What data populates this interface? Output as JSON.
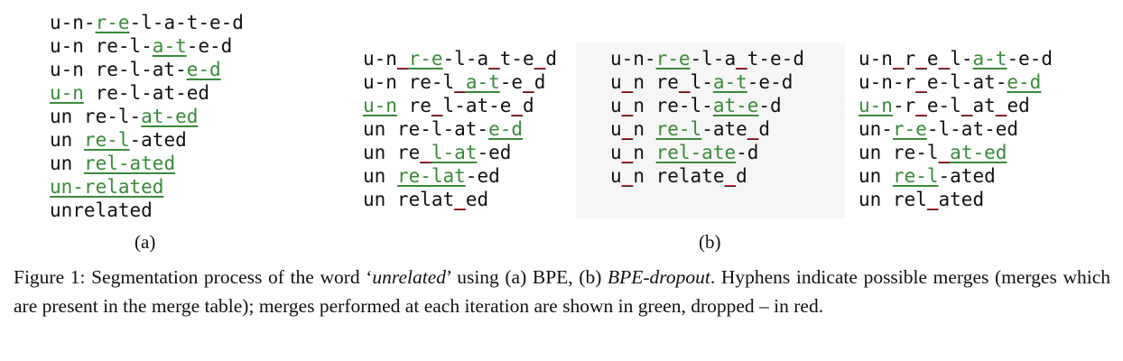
{
  "panel_a": {
    "label": "(a)",
    "lines": [
      [
        [
          "u-n-",
          ""
        ],
        [
          "r-e",
          "g"
        ],
        [
          "-l-a-t-e-d",
          ""
        ]
      ],
      [
        [
          "u-n re-l-",
          ""
        ],
        [
          "a-t",
          "g"
        ],
        [
          "-e-d",
          ""
        ]
      ],
      [
        [
          "u-n re-l-at-",
          ""
        ],
        [
          "e-d",
          "g"
        ]
      ],
      [
        [
          "u-n",
          "g"
        ],
        [
          " re-l-at-ed",
          ""
        ]
      ],
      [
        [
          "un re-l-",
          ""
        ],
        [
          "at-ed",
          "g"
        ]
      ],
      [
        [
          "un ",
          ""
        ],
        [
          "re-l",
          "g"
        ],
        [
          "-ated",
          ""
        ]
      ],
      [
        [
          "un ",
          ""
        ],
        [
          "rel-ated",
          "g"
        ]
      ],
      [
        [
          "un-related",
          "g"
        ]
      ],
      [
        [
          "unrelated",
          ""
        ]
      ]
    ]
  },
  "panel_b": {
    "label": "(b)",
    "col1": [
      [
        [
          "u-n",
          ""
        ],
        [
          "_",
          "r"
        ],
        [
          "r-e",
          "g"
        ],
        [
          "-l-a",
          ""
        ],
        [
          "_",
          "r"
        ],
        [
          "t-e",
          ""
        ],
        [
          "_",
          "r"
        ],
        [
          "d",
          ""
        ]
      ],
      [
        [
          "u-n re-l",
          ""
        ],
        [
          "_",
          "r"
        ],
        [
          "a-t",
          "g"
        ],
        [
          "-e",
          ""
        ],
        [
          "_",
          "r"
        ],
        [
          "d",
          ""
        ]
      ],
      [
        [
          "u-n",
          "g"
        ],
        [
          " re",
          ""
        ],
        [
          "_",
          "r"
        ],
        [
          "l-at-e",
          ""
        ],
        [
          "_",
          "r"
        ],
        [
          "d",
          ""
        ]
      ],
      [
        [
          "un re-l-at-",
          ""
        ],
        [
          "e-d",
          "g"
        ]
      ],
      [
        [
          "un re",
          ""
        ],
        [
          "_",
          "r"
        ],
        [
          "l-at",
          "g"
        ],
        [
          "-ed",
          ""
        ]
      ],
      [
        [
          "un ",
          ""
        ],
        [
          "re-lat",
          "g"
        ],
        [
          "-ed",
          ""
        ]
      ],
      [
        [
          "un relat",
          ""
        ],
        [
          "_",
          "r"
        ],
        [
          "ed",
          ""
        ]
      ]
    ],
    "col2": [
      [
        [
          "u-n-",
          ""
        ],
        [
          "r-e",
          "g"
        ],
        [
          "-l-a",
          ""
        ],
        [
          "_",
          "r"
        ],
        [
          "t-e-d",
          ""
        ]
      ],
      [
        [
          "u",
          ""
        ],
        [
          "_",
          "r"
        ],
        [
          "n re",
          ""
        ],
        [
          "_",
          "r"
        ],
        [
          "l-",
          ""
        ],
        [
          "a-t",
          "g"
        ],
        [
          "-e-d",
          ""
        ]
      ],
      [
        [
          "u",
          ""
        ],
        [
          "_",
          "r"
        ],
        [
          "n re-l-",
          ""
        ],
        [
          "at-e",
          "g"
        ],
        [
          "-d",
          ""
        ]
      ],
      [
        [
          "u",
          ""
        ],
        [
          "_",
          "r"
        ],
        [
          "n ",
          ""
        ],
        [
          "re-l",
          "g"
        ],
        [
          "-ate",
          ""
        ],
        [
          "_",
          "r"
        ],
        [
          "d",
          ""
        ]
      ],
      [
        [
          "u",
          ""
        ],
        [
          "_",
          "r"
        ],
        [
          "n ",
          ""
        ],
        [
          "rel-ate",
          "g"
        ],
        [
          "-d",
          ""
        ]
      ],
      [
        [
          "u",
          ""
        ],
        [
          "_",
          "r"
        ],
        [
          "n relate",
          ""
        ],
        [
          "_",
          "r"
        ],
        [
          "d",
          ""
        ]
      ]
    ],
    "col3": [
      [
        [
          "u-n",
          ""
        ],
        [
          "_",
          "r"
        ],
        [
          "r",
          ""
        ],
        [
          "_",
          "r"
        ],
        [
          "e",
          ""
        ],
        [
          "_",
          "r"
        ],
        [
          "l-",
          ""
        ],
        [
          "a-t",
          "g"
        ],
        [
          "-e-d",
          ""
        ]
      ],
      [
        [
          "u-n-r",
          ""
        ],
        [
          "_",
          "r"
        ],
        [
          "e-l-at-",
          ""
        ],
        [
          "e-d",
          "g"
        ]
      ],
      [
        [
          "u-n",
          "g"
        ],
        [
          "-r",
          ""
        ],
        [
          "_",
          "r"
        ],
        [
          "e-l",
          ""
        ],
        [
          "_",
          "r"
        ],
        [
          "at",
          ""
        ],
        [
          "_",
          "r"
        ],
        [
          "ed",
          ""
        ]
      ],
      [
        [
          "un-",
          ""
        ],
        [
          "r-e",
          "g"
        ],
        [
          "-l-at-ed",
          ""
        ]
      ],
      [
        [
          "un re-l",
          ""
        ],
        [
          "_",
          "r"
        ],
        [
          "at-ed",
          "g"
        ]
      ],
      [
        [
          "un ",
          ""
        ],
        [
          "re-l",
          "g"
        ],
        [
          "-ated",
          ""
        ]
      ],
      [
        [
          "un rel",
          ""
        ],
        [
          "_",
          "r"
        ],
        [
          "ated",
          ""
        ]
      ]
    ]
  },
  "caption": {
    "prefix": "Figure 1: Segmentation process of the word ‘",
    "word": "unrelated",
    "middle": "’ using (a) BPE, (b) ",
    "method": "BPE-dropout",
    "suffix": ". Hyphens indicate possible merges (merges which are present in the merge table); merges performed at each iteration are shown in green, dropped – in red."
  },
  "colors": {
    "merged": "#3a8a3a",
    "dropped": "#d0303a"
  }
}
